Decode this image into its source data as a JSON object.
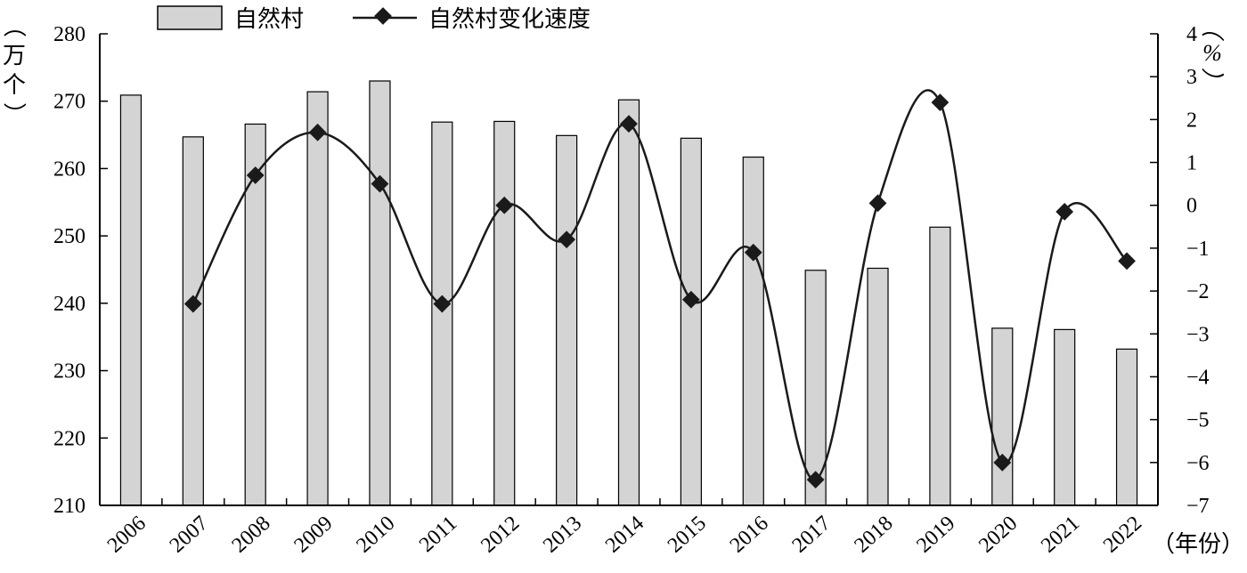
{
  "chart_data": {
    "type": "bar+line",
    "categories": [
      "2006",
      "2007",
      "2008",
      "2009",
      "2010",
      "2011",
      "2012",
      "2013",
      "2014",
      "2015",
      "2016",
      "2017",
      "2018",
      "2019",
      "2020",
      "2021",
      "2022"
    ],
    "series": [
      {
        "name": "自然村",
        "type": "bar",
        "axis": "left",
        "color": "#d4d4d4",
        "values": [
          270.9,
          264.7,
          266.6,
          271.4,
          273.0,
          266.9,
          267.0,
          264.9,
          270.2,
          264.5,
          261.7,
          244.9,
          245.2,
          251.3,
          236.3,
          236.1,
          233.2
        ]
      },
      {
        "name": "自然村变化速度",
        "type": "line",
        "axis": "right",
        "color": "#1a1a1a",
        "values": [
          null,
          -2.3,
          0.7,
          1.7,
          0.5,
          -2.3,
          0.0,
          -0.8,
          1.9,
          -2.2,
          -1.1,
          -6.4,
          0.05,
          2.4,
          -6.0,
          -0.15,
          -1.3
        ]
      }
    ],
    "ylabel_left": "（万个）",
    "ylabel_right": "（%）",
    "xlabel": "（年份）",
    "ylim_left": [
      210,
      280
    ],
    "ylim_right": [
      -7,
      4
    ],
    "yticks_left": [
      "280",
      "270",
      "260",
      "250",
      "240",
      "230",
      "220",
      "210"
    ],
    "yticks_right": [
      "4",
      "3",
      "2",
      "1",
      "0",
      "−1",
      "−2",
      "−3",
      "−4",
      "−5",
      "−6",
      "−7"
    ],
    "grid": false,
    "legend_position": "top"
  }
}
